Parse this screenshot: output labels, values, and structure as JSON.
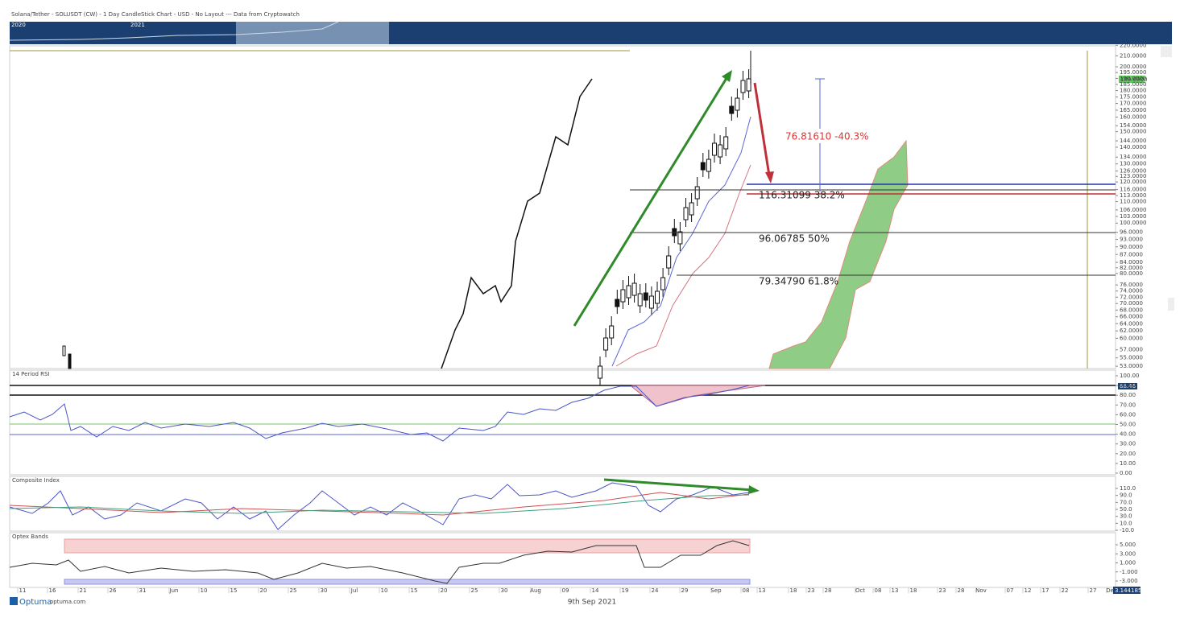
{
  "header": {
    "title": "Solana/Tether - SOLUSDT (CW) - 1 Day CandleStick Chart - USD - No Layout --- Data from Cryptowatch"
  },
  "navigator": {
    "labels": [
      "2020",
      "2021"
    ]
  },
  "price_axis": {
    "ticks": [
      "220.0000",
      "210.0000",
      "200.0000",
      "195.0000",
      "190.0000",
      "185.0000",
      "180.0000",
      "175.0000",
      "170.0000",
      "165.0000",
      "160.0000",
      "154.0000",
      "150.0000",
      "144.0000",
      "140.0000",
      "134.0000",
      "130.0000",
      "126.0000",
      "123.0000",
      "120.0000",
      "116.0000",
      "113.0000",
      "110.0000",
      "106.0000",
      "103.0000",
      "100.0000",
      "96.0000",
      "93.0000",
      "90.0000",
      "87.0000",
      "84.0000",
      "82.0000",
      "80.0000",
      "76.0000",
      "74.0000",
      "72.0000",
      "70.0000",
      "68.0000",
      "66.0000",
      "64.0000",
      "62.0000",
      "60.0000",
      "57.0000",
      "55.0000",
      "53.0000"
    ],
    "current": "189.6900"
  },
  "annotations": {
    "range": "76.81610  -40.3%",
    "fib_382": "116.31099   38.2%",
    "fib_50": "96.06785   50%",
    "fib_618": "79.34790   61.8%"
  },
  "rsi": {
    "title": "14 Period RSI",
    "ticks": [
      "100.00",
      "90.00",
      "80.00",
      "70.00",
      "60.00",
      "50.00",
      "40.00",
      "30.00",
      "20.00",
      "10.00",
      "0.00"
    ],
    "current": "88.46"
  },
  "composite": {
    "title": "Composite Index",
    "ticks": [
      "110.0",
      "90.0",
      "70.0",
      "50.0",
      "30.0",
      "10.0",
      "-10.0"
    ]
  },
  "optex": {
    "title": "Optex Bands",
    "ticks": [
      "5.000",
      "3.000",
      "1.000",
      "-1.000",
      "-3.000"
    ]
  },
  "x_axis": {
    "labels": [
      "11",
      "16",
      "21",
      "26",
      "31",
      "Jun",
      "10",
      "15",
      "20",
      "25",
      "30",
      "Jul",
      "10",
      "15",
      "20",
      "25",
      "30",
      "Aug",
      "09",
      "14",
      "19",
      "24",
      "29",
      "Sep",
      "08",
      "13",
      "18",
      "23",
      "28",
      "Oct",
      "08",
      "13",
      "18",
      "23",
      "28",
      "Nov",
      "07",
      "12",
      "17",
      "22",
      "27",
      "Dec"
    ],
    "current": "3.144185"
  },
  "footer": {
    "brand": "Optuma",
    "site": "optuma.com",
    "date": "9th Sep 2021"
  }
}
